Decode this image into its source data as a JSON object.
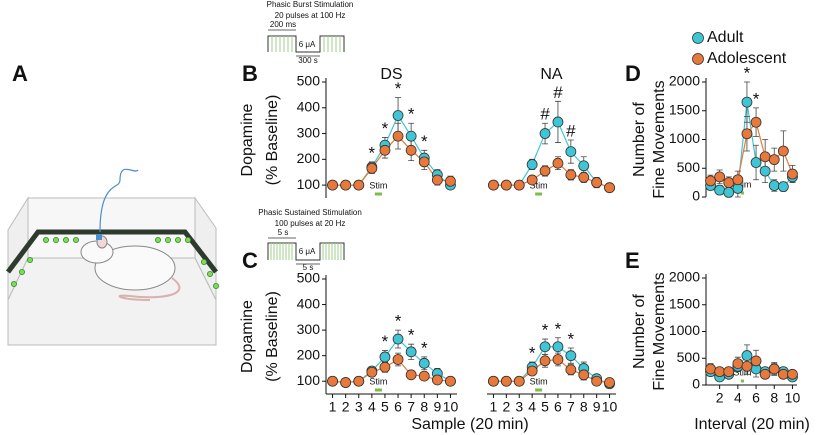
{
  "panel_labels": {
    "a": "A"
  },
  "stimulation_protocols": [
    {
      "title": "Phasic Burst Stimulation",
      "subtitle": "20 pulses at 100 Hz",
      "pulse_label": "200 ms",
      "amplitude_label": "6 μA",
      "interval_label": "300 s"
    },
    {
      "title": "Phasic Sustained Stimulation",
      "subtitle": "100 pulses at 20 Hz",
      "pulse_label": "5 s",
      "amplitude_label": "6 μA",
      "interval_label": "5 s"
    }
  ],
  "chart_data": [
    {
      "type": "line",
      "panel": "B",
      "title": "DS",
      "ylabel": [
        "Dopamine",
        "(% Baseline)"
      ],
      "x": [
        1,
        2,
        3,
        4,
        5,
        6,
        7,
        8,
        9,
        10
      ],
      "xlim": [
        0.5,
        10.5
      ],
      "ylim": [
        50,
        500
      ],
      "yticks": [
        100,
        200,
        300,
        400,
        500
      ],
      "stim": {
        "label": "Stim",
        "start": 4,
        "end": 5
      },
      "series": [
        {
          "name": "Adult",
          "color": "#3fc6d6",
          "values": [
            100,
            100,
            100,
            170,
            255,
            370,
            290,
            205,
            140,
            100
          ],
          "errors": [
            10,
            10,
            10,
            20,
            30,
            70,
            50,
            30,
            20,
            15
          ]
        },
        {
          "name": "Adolescent",
          "color": "#e8793a",
          "values": [
            100,
            100,
            100,
            165,
            235,
            290,
            235,
            190,
            120,
            115
          ],
          "errors": [
            10,
            10,
            10,
            20,
            30,
            50,
            40,
            30,
            20,
            20
          ]
        }
      ],
      "annotations": [
        {
          "x": 4,
          "text": "*"
        },
        {
          "x": 5,
          "text": "*"
        },
        {
          "x": 6,
          "text": "*"
        },
        {
          "x": 7,
          "text": "*"
        },
        {
          "x": 8,
          "text": "*"
        }
      ]
    },
    {
      "type": "line",
      "title": "NA",
      "x": [
        1,
        2,
        3,
        4,
        5,
        6,
        7,
        8,
        9,
        10
      ],
      "xlim": [
        0.5,
        10.5
      ],
      "ylim": [
        50,
        500
      ],
      "stim": {
        "label": "Stim",
        "start": 4,
        "end": 5
      },
      "series": [
        {
          "name": "Adult",
          "color": "#3fc6d6",
          "values": [
            100,
            100,
            100,
            180,
            300,
            345,
            230,
            175,
            110,
            90
          ],
          "errors": [
            10,
            10,
            10,
            20,
            40,
            80,
            45,
            35,
            20,
            15
          ]
        },
        {
          "name": "Adolescent",
          "color": "#e8793a",
          "values": [
            100,
            100,
            100,
            120,
            155,
            185,
            140,
            130,
            110,
            90
          ],
          "errors": [
            10,
            10,
            10,
            15,
            20,
            25,
            20,
            20,
            15,
            15
          ]
        }
      ],
      "annotations": [
        {
          "x": 5,
          "text": "#"
        },
        {
          "x": 6,
          "text": "#"
        },
        {
          "x": 7,
          "text": "#"
        }
      ]
    },
    {
      "type": "line",
      "panel": "C",
      "ylabel": [
        "Dopamine",
        "(% Baseline)"
      ],
      "xlabel": "Sample (20 min)",
      "x": [
        1,
        2,
        3,
        4,
        5,
        6,
        7,
        8,
        9,
        10
      ],
      "xlim": [
        0.5,
        10.5
      ],
      "xticks": [
        1,
        2,
        3,
        4,
        5,
        6,
        7,
        8,
        9,
        10
      ],
      "ylim": [
        50,
        500
      ],
      "yticks": [
        100,
        200,
        300,
        400,
        500
      ],
      "stim": {
        "label": "Stim",
        "start": 4,
        "end": 5
      },
      "series": [
        {
          "name": "Adult",
          "color": "#3fc6d6",
          "values": [
            100,
            95,
            100,
            140,
            195,
            265,
            215,
            170,
            130,
            100
          ],
          "errors": [
            8,
            8,
            8,
            15,
            25,
            35,
            30,
            25,
            20,
            15
          ]
        },
        {
          "name": "Adolescent",
          "color": "#e8793a",
          "values": [
            100,
            95,
            100,
            135,
            155,
            185,
            125,
            120,
            105,
            100
          ],
          "errors": [
            8,
            8,
            8,
            15,
            20,
            25,
            15,
            15,
            15,
            15
          ]
        }
      ],
      "annotations": [
        {
          "x": 5,
          "text": "*"
        },
        {
          "x": 6,
          "text": "*"
        },
        {
          "x": 7,
          "text": "*"
        },
        {
          "x": 8,
          "text": "*"
        }
      ]
    },
    {
      "type": "line",
      "x": [
        1,
        2,
        3,
        4,
        5,
        6,
        7,
        8,
        9,
        10
      ],
      "xlim": [
        0.5,
        10.5
      ],
      "xticks": [
        1,
        2,
        3,
        4,
        5,
        6,
        7,
        8,
        9,
        10
      ],
      "ylim": [
        50,
        500
      ],
      "stim": {
        "label": "Stim",
        "start": 4,
        "end": 5
      },
      "series": [
        {
          "name": "Adult",
          "color": "#3fc6d6",
          "values": [
            100,
            100,
            100,
            155,
            235,
            235,
            200,
            150,
            110,
            90
          ],
          "errors": [
            8,
            8,
            8,
            20,
            30,
            35,
            30,
            25,
            15,
            15
          ]
        },
        {
          "name": "Adolescent",
          "color": "#e8793a",
          "values": [
            100,
            100,
            100,
            140,
            180,
            185,
            145,
            125,
            100,
            95
          ],
          "errors": [
            8,
            8,
            8,
            15,
            25,
            25,
            20,
            20,
            15,
            15
          ]
        }
      ],
      "annotations": [
        {
          "x": 4,
          "text": "*"
        },
        {
          "x": 5,
          "text": "*"
        },
        {
          "x": 6,
          "text": "*"
        },
        {
          "x": 7,
          "text": "*"
        }
      ]
    },
    {
      "type": "line",
      "panel": "D",
      "ylabel": [
        "Number of",
        "Fine Movements"
      ],
      "legend": "top",
      "x": [
        1,
        2,
        3,
        4,
        5,
        6,
        7,
        8,
        9,
        10
      ],
      "xlim": [
        0.5,
        10.5
      ],
      "ylim": [
        0,
        2000
      ],
      "yticks": [
        0,
        500,
        1000,
        1500,
        2000
      ],
      "stim": {
        "label": "Stim",
        "start": 4,
        "end": 5
      },
      "series": [
        {
          "name": "Adult",
          "color": "#3fc6d6",
          "values": [
            200,
            120,
            80,
            150,
            1650,
            600,
            450,
            200,
            180,
            350
          ],
          "errors": [
            80,
            80,
            80,
            150,
            350,
            300,
            200,
            100,
            80,
            100
          ]
        },
        {
          "name": "Adolescent",
          "color": "#e8793a",
          "values": [
            280,
            350,
            250,
            300,
            1100,
            1300,
            700,
            650,
            800,
            400
          ],
          "errors": [
            100,
            120,
            100,
            150,
            300,
            250,
            300,
            200,
            350,
            150
          ]
        }
      ],
      "annotations": [
        {
          "x": 5,
          "text": "*"
        },
        {
          "x": 6,
          "text": "*"
        }
      ]
    },
    {
      "type": "line",
      "panel": "E",
      "ylabel": [
        "Number of",
        "Fine Movements"
      ],
      "xlabel": "Interval (20 min)",
      "x": [
        1,
        2,
        3,
        4,
        5,
        6,
        7,
        8,
        9,
        10
      ],
      "xlim": [
        0.5,
        10.5
      ],
      "xticks": [
        2,
        4,
        6,
        8,
        10
      ],
      "ylim": [
        0,
        2000
      ],
      "yticks": [
        0,
        500,
        1000,
        1500,
        2000
      ],
      "stim": {
        "label": "Stim",
        "start": 4,
        "end": 5
      },
      "series": [
        {
          "name": "Adult",
          "color": "#3fc6d6",
          "values": [
            250,
            150,
            200,
            350,
            550,
            300,
            250,
            300,
            250,
            150
          ],
          "errors": [
            80,
            60,
            60,
            100,
            200,
            150,
            80,
            100,
            80,
            60
          ]
        },
        {
          "name": "Adolescent",
          "color": "#e8793a",
          "values": [
            300,
            250,
            250,
            400,
            350,
            450,
            200,
            300,
            200,
            200
          ],
          "errors": [
            100,
            80,
            80,
            120,
            150,
            200,
            80,
            120,
            80,
            60
          ]
        }
      ]
    }
  ]
}
